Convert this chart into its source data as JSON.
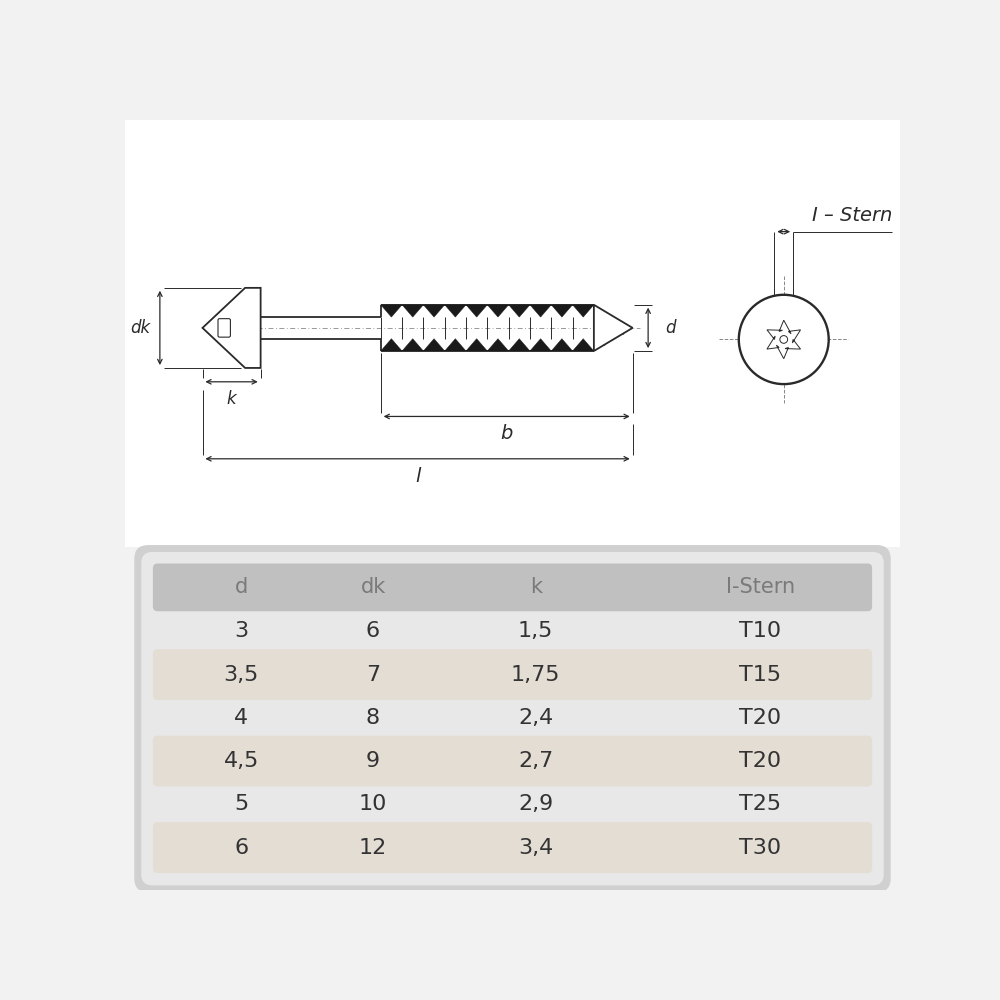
{
  "bg_color": "#f2f2f2",
  "drawing_bg": "#ffffff",
  "line_color": "#2a2a2a",
  "header_text_color": "#888888",
  "body_text_color": "#333333",
  "table_bg": "#d8d8d8",
  "row_even_bg": "#ece8e0",
  "row_odd_bg": "#f2f2f2",
  "table_headers": [
    "d",
    "dk",
    "k",
    "I-Stern"
  ],
  "table_rows": [
    [
      "3",
      "6",
      "1,5",
      "T10"
    ],
    [
      "3,5",
      "7",
      "1,75",
      "T15"
    ],
    [
      "4",
      "8",
      "2,4",
      "T20"
    ],
    [
      "4,5",
      "9",
      "2,7",
      "T20"
    ],
    [
      "5",
      "10",
      "2,9",
      "T25"
    ],
    [
      "6",
      "12",
      "3,4",
      "T30"
    ]
  ],
  "label_dk": "dk",
  "label_k": "k",
  "label_b": "b",
  "label_l": "l",
  "label_d": "d",
  "label_istern": "I – Stern"
}
